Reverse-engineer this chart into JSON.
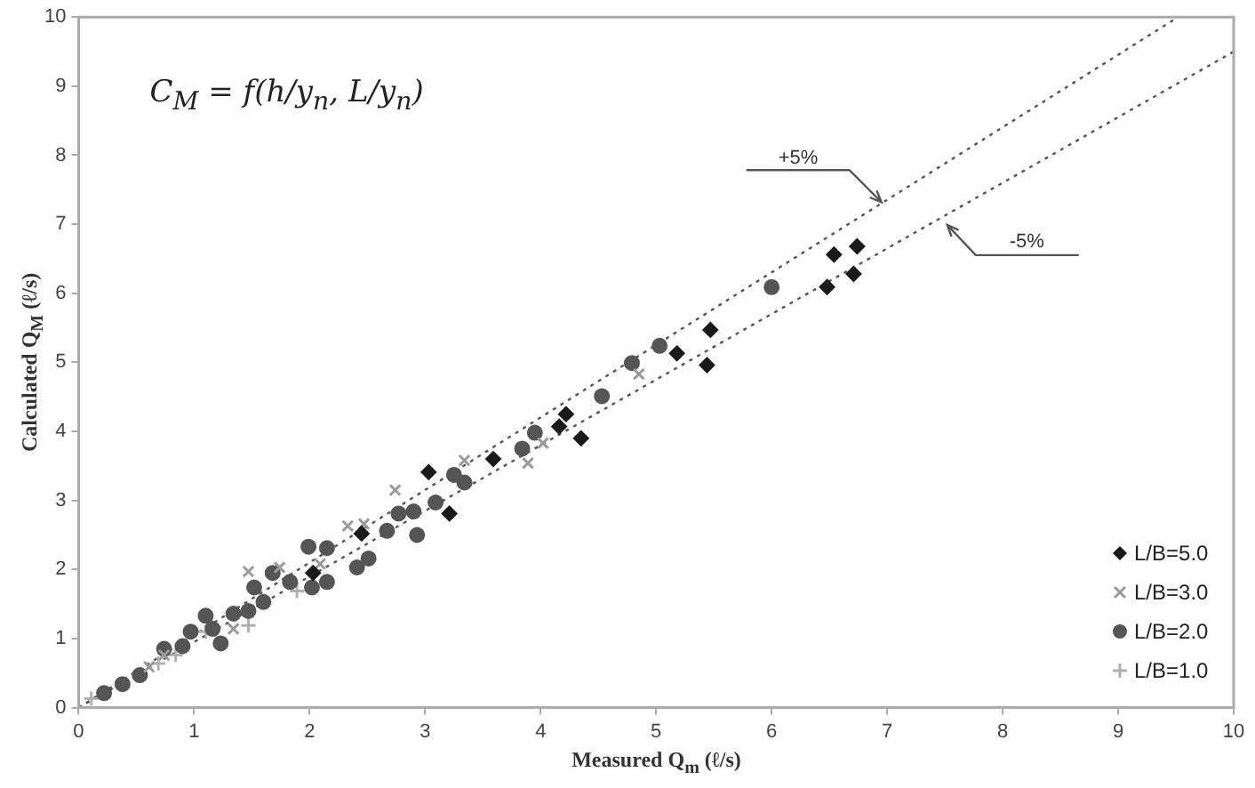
{
  "chart_data": {
    "type": "scatter",
    "xlabel": "Measured Q$_{m}$ (ℓ/s)",
    "ylabel": "Calculated Q$_{M}$ (ℓ/s)",
    "xlim": [
      0,
      10
    ],
    "ylim": [
      0,
      10
    ],
    "xticks": [
      0,
      1,
      2,
      3,
      4,
      5,
      6,
      7,
      8,
      9,
      10
    ],
    "yticks": [
      0,
      1,
      2,
      3,
      4,
      5,
      6,
      7,
      8,
      9,
      10
    ],
    "grid": false,
    "legend": "bottom right",
    "annotations": [
      "C$_{M}$ = f(h/y$_{n}$, L/y$_{n}$)",
      {
        "text": "+5%",
        "x": 6.95,
        "y": 7.32
      },
      {
        "text": "-5%",
        "x": 7.52,
        "y": 6.99
      }
    ],
    "series": [
      {
        "name": "L/B=5.0",
        "color": "#1a1a1a",
        "marker": "diamond",
        "x": [
          6.54,
          6.74,
          6.71,
          6.48,
          5.47,
          5.18,
          5.44,
          4.22,
          4.16,
          4.35,
          3.59,
          3.03,
          3.21,
          2.45,
          2.03
        ],
        "values": [
          6.56,
          6.68,
          6.28,
          6.09,
          5.47,
          5.13,
          4.96,
          4.25,
          4.07,
          3.9,
          3.6,
          3.41,
          2.81,
          2.52,
          1.95
        ]
      },
      {
        "name": "L/B=3.0",
        "color": "#9a9a9a",
        "marker": "cross",
        "x": [
          4.85,
          2.74,
          2.47,
          2.33,
          1.74,
          1.47,
          3.34,
          3.89,
          4.02,
          2.09,
          0.74,
          0.61,
          1.34
        ],
        "values": [
          4.83,
          3.15,
          2.66,
          2.63,
          2.03,
          1.97,
          3.58,
          3.54,
          3.83,
          2.08,
          0.76,
          0.59,
          1.14
        ]
      },
      {
        "name": "L/B=2.0",
        "color": "#555555",
        "marker": "circle",
        "x": [
          6.0,
          5.03,
          4.79,
          4.53,
          3.95,
          3.84,
          3.34,
          3.25,
          3.09,
          2.93,
          2.9,
          2.77,
          2.67,
          2.51,
          2.41,
          2.15,
          2.02,
          1.99,
          2.15,
          1.83,
          1.68,
          1.52,
          1.6,
          1.34,
          1.1,
          0.97,
          1.16,
          0.9,
          0.74,
          0.53,
          0.38,
          0.22,
          1.47,
          1.23
        ],
        "values": [
          6.09,
          5.24,
          4.99,
          4.51,
          3.98,
          3.75,
          3.26,
          3.37,
          2.97,
          2.5,
          2.84,
          2.81,
          2.56,
          2.16,
          2.03,
          1.82,
          1.74,
          2.33,
          2.31,
          1.82,
          1.95,
          1.74,
          1.53,
          1.36,
          1.33,
          1.1,
          1.14,
          0.89,
          0.85,
          0.47,
          0.34,
          0.21,
          1.4,
          0.93
        ]
      },
      {
        "name": "L/B=1.0",
        "color": "#b0b0b0",
        "marker": "plus",
        "x": [
          0.11,
          0.84,
          1.1,
          0.69,
          1.47,
          1.89
        ],
        "values": [
          0.13,
          0.76,
          1.1,
          0.64,
          1.19,
          1.69
        ]
      },
      {
        "type": "line",
        "color": "#555555",
        "line_style": "dotted",
        "marker": "none",
        "x": [
          0,
          9.5
        ],
        "values": [
          0,
          9.98
        ]
      },
      {
        "type": "line",
        "color": "#555555",
        "line_style": "dotted",
        "marker": "none",
        "x": [
          0,
          10
        ],
        "values": [
          0,
          9.5
        ]
      }
    ]
  }
}
